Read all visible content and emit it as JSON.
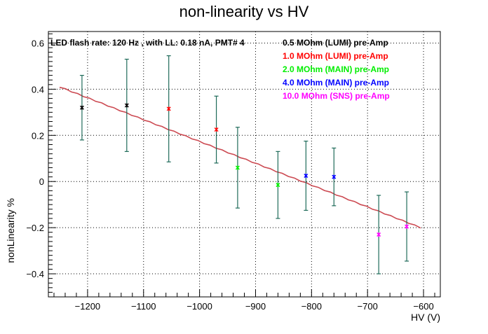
{
  "chart_data": {
    "type": "scatter",
    "title": "non-linearity vs HV",
    "xlabel": "HV (V)",
    "ylabel": "nonLinearity %",
    "xlim": [
      -1270,
      -570
    ],
    "ylim": [
      -0.5,
      0.65
    ],
    "xticks": [
      -1200,
      -1100,
      -1000,
      -900,
      -800,
      -700,
      -600
    ],
    "yticks": [
      -0.4,
      -0.2,
      0,
      0.2,
      0.4,
      0.6
    ],
    "xtick_labels": [
      "−1200",
      "−1100",
      "−1000",
      "−900",
      "−800",
      "−700",
      "−600"
    ],
    "ytick_labels": [
      "−0.4",
      "−0.2",
      "0",
      "0.2",
      "0.4",
      "0.6"
    ],
    "grid": true,
    "annotation": "LED flash rate: 120 Hz , with LL: 0.18 nA, PMT# 4",
    "legend_position": "top-right",
    "fit_line": {
      "x": [
        -1250,
        -605
      ],
      "y": [
        0.41,
        -0.2
      ],
      "color": "#cc4a52"
    },
    "error_bar_color": "#1f6b5a",
    "series": [
      {
        "name": "0.5 MOhm (LUMI) pre-Amp",
        "color": "#000000",
        "points": [
          {
            "x": -1210,
            "y": 0.32,
            "err": 0.14
          },
          {
            "x": -1130,
            "y": 0.33,
            "err": 0.2
          }
        ]
      },
      {
        "name": "1.0 MOhm (LUMI) pre-Amp",
        "color": "#ff0000",
        "points": [
          {
            "x": -1055,
            "y": 0.315,
            "err": 0.23
          },
          {
            "x": -970,
            "y": 0.225,
            "err": 0.145
          }
        ]
      },
      {
        "name": "2.0 MOhm (MAIN) pre-Amp",
        "color": "#00ee00",
        "points": [
          {
            "x": -932,
            "y": 0.06,
            "err": 0.175
          },
          {
            "x": -860,
            "y": -0.015,
            "err": 0.145
          }
        ]
      },
      {
        "name": "4.0 MOhm (MAIN) pre-Amp",
        "color": "#0000ff",
        "points": [
          {
            "x": -810,
            "y": 0.025,
            "err": 0.15
          },
          {
            "x": -760,
            "y": 0.02,
            "err": 0.125
          }
        ]
      },
      {
        "name": "10.0 MOhm (SNS) pre-Amp",
        "color": "#ff00ff",
        "points": [
          {
            "x": -680,
            "y": -0.23,
            "err": 0.17
          },
          {
            "x": -630,
            "y": -0.195,
            "err": 0.15
          }
        ]
      }
    ]
  }
}
